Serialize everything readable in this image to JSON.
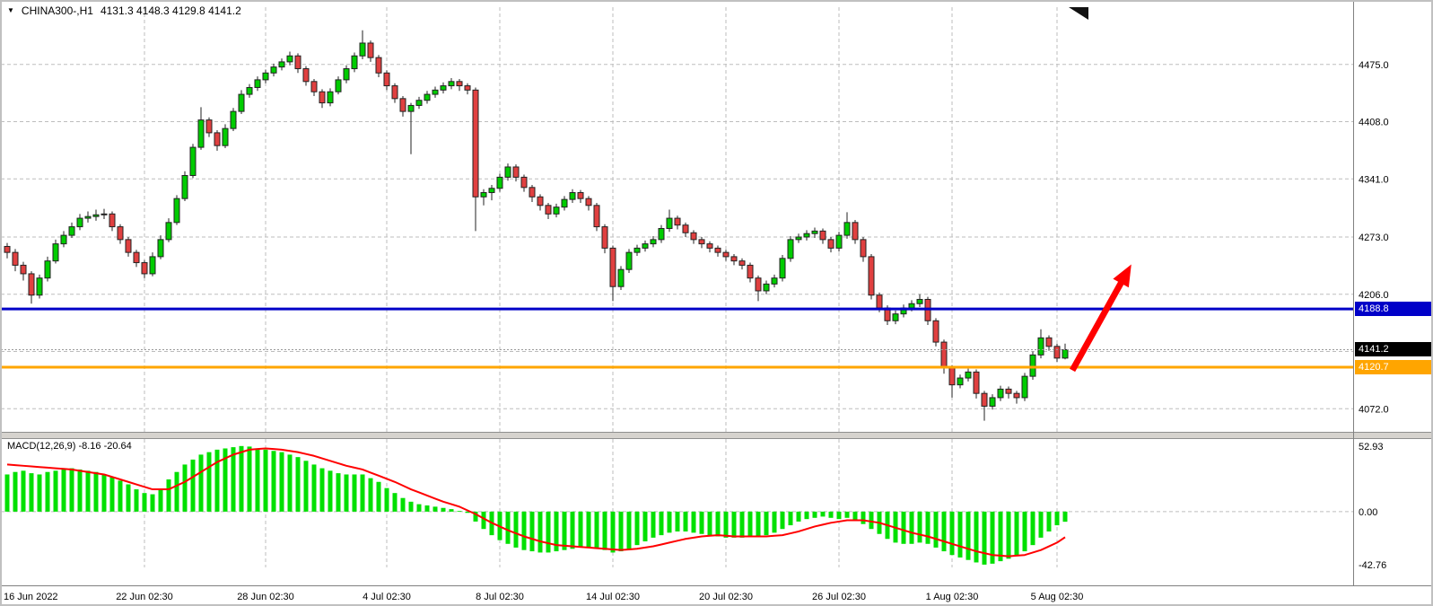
{
  "header": {
    "dropdown_icon": "▼",
    "symbol_period": "CHINA300-,H1",
    "ohlc_values": "4131.3 4148.3 4129.8 4141.2"
  },
  "price_scale": {
    "labels": [
      4475.0,
      4408.0,
      4341.0,
      4273.0,
      4206.0,
      4072.0
    ],
    "tags": [
      {
        "label": "4188.8",
        "price": 4188.8,
        "bg": "#0000C8",
        "fg": "#FFFFFF"
      },
      {
        "label": "4141.2",
        "price": 4141.2,
        "bg": "#000000",
        "fg": "#FFFFFF"
      },
      {
        "label": "4120.7",
        "price": 4120.7,
        "bg": "#FFA500",
        "fg": "#FFFFFF"
      }
    ]
  },
  "chart_data": [
    {
      "type": "candlestick",
      "symbol": "CHINA300-",
      "timeframe": "H1",
      "title": "CHINA300-,H1 4131.3 4148.3 4129.8 4141.2",
      "ylim": [
        4045,
        4542
      ],
      "y_gridlines": [
        4475,
        4408,
        4341,
        4273,
        4206,
        4139,
        4072
      ],
      "x_labels": [
        {
          "index": 0,
          "label": "16 Jun 2022"
        },
        {
          "index": 17,
          "label": "22 Jun 02:30"
        },
        {
          "index": 32,
          "label": "28 Jun 02:30"
        },
        {
          "index": 47,
          "label": "4 Jul 02:30"
        },
        {
          "index": 61,
          "label": "8 Jul 02:30"
        },
        {
          "index": 75,
          "label": "14 Jul 02:30"
        },
        {
          "index": 89,
          "label": "20 Jul 02:30"
        },
        {
          "index": 103,
          "label": "26 Jul 02:30"
        },
        {
          "index": 117,
          "label": "1 Aug 02:30"
        },
        {
          "index": 130,
          "label": "5 Aug 02:30"
        }
      ],
      "hlines": [
        {
          "price": 4188.8,
          "color": "#0000C8",
          "width": 3
        },
        {
          "price": 4120.7,
          "color": "#FFA500",
          "width": 3
        },
        {
          "price": 4141.2,
          "color": "#999999",
          "width": 1,
          "dash": "2 2"
        }
      ],
      "arrow": {
        "from": {
          "index": 131.9,
          "price": 4117
        },
        "to": {
          "index": 139.2,
          "price": 4241
        },
        "color": "#FF0000"
      },
      "up_color": "#00CC00",
      "down_color": "#E04040",
      "candles": [
        [
          4262,
          4266,
          4248,
          4255
        ],
        [
          4255,
          4259,
          4233,
          4240
        ],
        [
          4240,
          4244,
          4222,
          4230
        ],
        [
          4230,
          4233,
          4195,
          4205
        ],
        [
          4205,
          4229,
          4201,
          4225
        ],
        [
          4225,
          4250,
          4221,
          4245
        ],
        [
          4245,
          4270,
          4242,
          4265
        ],
        [
          4265,
          4280,
          4261,
          4275
        ],
        [
          4275,
          4290,
          4272,
          4285
        ],
        [
          4285,
          4300,
          4281,
          4295
        ],
        [
          4295,
          4303,
          4290,
          4297
        ],
        [
          4297,
          4305,
          4292,
          4299
        ],
        [
          4299,
          4306,
          4294,
          4300
        ],
        [
          4300,
          4303,
          4280,
          4285
        ],
        [
          4285,
          4288,
          4265,
          4270
        ],
        [
          4270,
          4273,
          4250,
          4255
        ],
        [
          4255,
          4258,
          4238,
          4243
        ],
        [
          4243,
          4246,
          4225,
          4230
        ],
        [
          4230,
          4255,
          4227,
          4250
        ],
        [
          4250,
          4275,
          4247,
          4270
        ],
        [
          4270,
          4295,
          4267,
          4290
        ],
        [
          4290,
          4322,
          4287,
          4318
        ],
        [
          4318,
          4350,
          4315,
          4345
        ],
        [
          4345,
          4382,
          4342,
          4378
        ],
        [
          4378,
          4425,
          4375,
          4410
        ],
        [
          4410,
          4413,
          4390,
          4395
        ],
        [
          4395,
          4398,
          4374,
          4380
        ],
        [
          4380,
          4405,
          4377,
          4400
        ],
        [
          4400,
          4424,
          4397,
          4420
        ],
        [
          4420,
          4445,
          4417,
          4440
        ],
        [
          4440,
          4452,
          4436,
          4448
        ],
        [
          4448,
          4461,
          4444,
          4457
        ],
        [
          4457,
          4469,
          4453,
          4465
        ],
        [
          4465,
          4476,
          4461,
          4472
        ],
        [
          4472,
          4482,
          4468,
          4478
        ],
        [
          4478,
          4490,
          4474,
          4485
        ],
        [
          4485,
          4488,
          4465,
          4470
        ],
        [
          4470,
          4473,
          4450,
          4455
        ],
        [
          4455,
          4458,
          4438,
          4443
        ],
        [
          4443,
          4446,
          4424,
          4430
        ],
        [
          4430,
          4447,
          4426,
          4443
        ],
        [
          4443,
          4461,
          4440,
          4457
        ],
        [
          4457,
          4474,
          4453,
          4470
        ],
        [
          4470,
          4489,
          4466,
          4485
        ],
        [
          4485,
          4515,
          4481,
          4500
        ],
        [
          4500,
          4503,
          4478,
          4483
        ],
        [
          4483,
          4486,
          4460,
          4465
        ],
        [
          4465,
          4468,
          4445,
          4450
        ],
        [
          4450,
          4453,
          4430,
          4435
        ],
        [
          4435,
          4438,
          4414,
          4420
        ],
        [
          4420,
          4430,
          4370,
          4427
        ],
        [
          4427,
          4437,
          4423,
          4433
        ],
        [
          4433,
          4444,
          4429,
          4440
        ],
        [
          4440,
          4449,
          4436,
          4445
        ],
        [
          4445,
          4454,
          4441,
          4450
        ],
        [
          4450,
          4459,
          4446,
          4455
        ],
        [
          4455,
          4458,
          4444,
          4450
        ],
        [
          4450,
          4453,
          4440,
          4445
        ],
        [
          4445,
          4448,
          4280,
          4320
        ],
        [
          4320,
          4329,
          4310,
          4325
        ],
        [
          4325,
          4334,
          4316,
          4330
        ],
        [
          4330,
          4347,
          4326,
          4343
        ],
        [
          4343,
          4359,
          4339,
          4355
        ],
        [
          4355,
          4358,
          4338,
          4343
        ],
        [
          4343,
          4346,
          4326,
          4331
        ],
        [
          4331,
          4334,
          4314,
          4320
        ],
        [
          4320,
          4323,
          4304,
          4310
        ],
        [
          4310,
          4313,
          4294,
          4300
        ],
        [
          4300,
          4312,
          4296,
          4308
        ],
        [
          4308,
          4321,
          4304,
          4317
        ],
        [
          4317,
          4329,
          4313,
          4325
        ],
        [
          4325,
          4328,
          4313,
          4318
        ],
        [
          4318,
          4321,
          4304,
          4310
        ],
        [
          4310,
          4313,
          4280,
          4285
        ],
        [
          4285,
          4288,
          4254,
          4260
        ],
        [
          4260,
          4263,
          4198,
          4215
        ],
        [
          4215,
          4239,
          4211,
          4235
        ],
        [
          4235,
          4259,
          4231,
          4255
        ],
        [
          4255,
          4264,
          4251,
          4260
        ],
        [
          4260,
          4269,
          4256,
          4265
        ],
        [
          4265,
          4274,
          4261,
          4270
        ],
        [
          4270,
          4287,
          4266,
          4283
        ],
        [
          4283,
          4305,
          4279,
          4295
        ],
        [
          4295,
          4298,
          4282,
          4287
        ],
        [
          4287,
          4290,
          4273,
          4278
        ],
        [
          4278,
          4281,
          4265,
          4270
        ],
        [
          4270,
          4273,
          4260,
          4265
        ],
        [
          4265,
          4268,
          4255,
          4260
        ],
        [
          4260,
          4263,
          4250,
          4255
        ],
        [
          4255,
          4258,
          4245,
          4250
        ],
        [
          4250,
          4253,
          4240,
          4245
        ],
        [
          4245,
          4248,
          4235,
          4240
        ],
        [
          4240,
          4243,
          4220,
          4225
        ],
        [
          4225,
          4228,
          4198,
          4210
        ],
        [
          4210,
          4222,
          4206,
          4218
        ],
        [
          4218,
          4229,
          4214,
          4225
        ],
        [
          4225,
          4252,
          4221,
          4248
        ],
        [
          4248,
          4274,
          4244,
          4270
        ],
        [
          4270,
          4277,
          4266,
          4273
        ],
        [
          4273,
          4281,
          4269,
          4277
        ],
        [
          4277,
          4284,
          4272,
          4280
        ],
        [
          4280,
          4283,
          4265,
          4270
        ],
        [
          4270,
          4273,
          4255,
          4260
        ],
        [
          4260,
          4279,
          4256,
          4275
        ],
        [
          4275,
          4302,
          4271,
          4290
        ],
        [
          4290,
          4293,
          4265,
          4270
        ],
        [
          4270,
          4273,
          4244,
          4250
        ],
        [
          4250,
          4253,
          4200,
          4205
        ],
        [
          4205,
          4208,
          4185,
          4190
        ],
        [
          4190,
          4193,
          4170,
          4175
        ],
        [
          4175,
          4187,
          4171,
          4183
        ],
        [
          4183,
          4194,
          4179,
          4190
        ],
        [
          4190,
          4199,
          4186,
          4195
        ],
        [
          4195,
          4206,
          4191,
          4200
        ],
        [
          4200,
          4203,
          4170,
          4175
        ],
        [
          4175,
          4178,
          4145,
          4150
        ],
        [
          4150,
          4153,
          4113,
          4120
        ],
        [
          4120,
          4123,
          4085,
          4100
        ],
        [
          4100,
          4112,
          4096,
          4108
        ],
        [
          4108,
          4119,
          4104,
          4115
        ],
        [
          4115,
          4118,
          4084,
          4090
        ],
        [
          4090,
          4093,
          4058,
          4075
        ],
        [
          4075,
          4089,
          4071,
          4085
        ],
        [
          4085,
          4099,
          4081,
          4095
        ],
        [
          4095,
          4098,
          4084,
          4090
        ],
        [
          4090,
          4093,
          4078,
          4085
        ],
        [
          4085,
          4114,
          4081,
          4110
        ],
        [
          4110,
          4139,
          4106,
          4135
        ],
        [
          4135,
          4165,
          4131,
          4155
        ],
        [
          4155,
          4158,
          4140,
          4145
        ],
        [
          4145,
          4148,
          4127,
          4131.3
        ],
        [
          4131.3,
          4148.3,
          4129.8,
          4141.2
        ]
      ]
    },
    {
      "type": "macd",
      "label": "MACD(12,26,9) -8.16 -20.64",
      "params": "12,26,9",
      "value": -8.16,
      "signal_value": -20.64,
      "ylim": [
        -45.0,
        58.6
      ],
      "levels": [
        52.93,
        0.0,
        -42.76
      ],
      "histogram_color": "#00E000",
      "signal_color": "#FF0000",
      "histogram": [
        30,
        32,
        33,
        31,
        30,
        32,
        33,
        34,
        35,
        34,
        33,
        32,
        30,
        28,
        25,
        22,
        18,
        15,
        14,
        18,
        26,
        32,
        38,
        42,
        46,
        48,
        50,
        51,
        52,
        52.93,
        52.5,
        51,
        50,
        49,
        48,
        46,
        44,
        41,
        38,
        35,
        33,
        31,
        30,
        30,
        30,
        27,
        24,
        19,
        15,
        11,
        8,
        6,
        5,
        4,
        3,
        2,
        0.5,
        -1,
        -8,
        -14,
        -19,
        -23,
        -26,
        -29,
        -31,
        -32,
        -33,
        -33,
        -32,
        -31,
        -30,
        -29,
        -29,
        -30,
        -31,
        -33,
        -32,
        -30,
        -27,
        -24,
        -21,
        -19,
        -17,
        -16,
        -16,
        -17,
        -18,
        -19,
        -20,
        -21,
        -21,
        -21,
        -20,
        -20,
        -19,
        -17,
        -14,
        -11,
        -8,
        -6,
        -5,
        -4,
        -5,
        -6,
        -5,
        -7,
        -10,
        -14,
        -18,
        -22,
        -25,
        -26,
        -26,
        -25,
        -26,
        -29,
        -32,
        -35,
        -37,
        -39,
        -41,
        -42.76,
        -42,
        -40,
        -38,
        -36,
        -32,
        -27,
        -21,
        -16,
        -11,
        -8.16
      ],
      "signal": [
        38,
        37.5,
        37,
        36.5,
        36,
        35.5,
        35,
        34.5,
        34,
        33,
        32,
        31,
        30,
        28,
        26,
        24,
        22,
        20,
        18,
        18,
        18,
        21,
        24,
        28,
        32,
        36,
        40,
        43,
        46,
        48,
        50,
        50.5,
        51,
        50.5,
        50,
        49,
        48,
        46.5,
        45,
        43,
        41,
        39,
        37,
        35.5,
        34,
        31.5,
        29,
        26.5,
        24,
        21,
        18,
        15.5,
        13,
        10.5,
        8,
        6,
        4,
        1,
        -2,
        -5.5,
        -9,
        -12,
        -15,
        -17.5,
        -20,
        -22,
        -24,
        -25.5,
        -27,
        -27.5,
        -28,
        -28.5,
        -29,
        -29.5,
        -30,
        -30.5,
        -31,
        -30.5,
        -30,
        -29,
        -28,
        -26.5,
        -25,
        -23.5,
        -22,
        -21,
        -20,
        -19.5,
        -19,
        -19.5,
        -20,
        -20,
        -20,
        -20,
        -20,
        -19.5,
        -19,
        -17.5,
        -16,
        -14,
        -12,
        -10.5,
        -9,
        -8,
        -7,
        -7,
        -7,
        -8,
        -9,
        -11,
        -13,
        -15,
        -17,
        -18.5,
        -20,
        -22,
        -24,
        -26,
        -28,
        -30,
        -32,
        -33.5,
        -35,
        -35.5,
        -36,
        -35.5,
        -35,
        -33,
        -31,
        -28,
        -25,
        -20.64
      ]
    }
  ]
}
